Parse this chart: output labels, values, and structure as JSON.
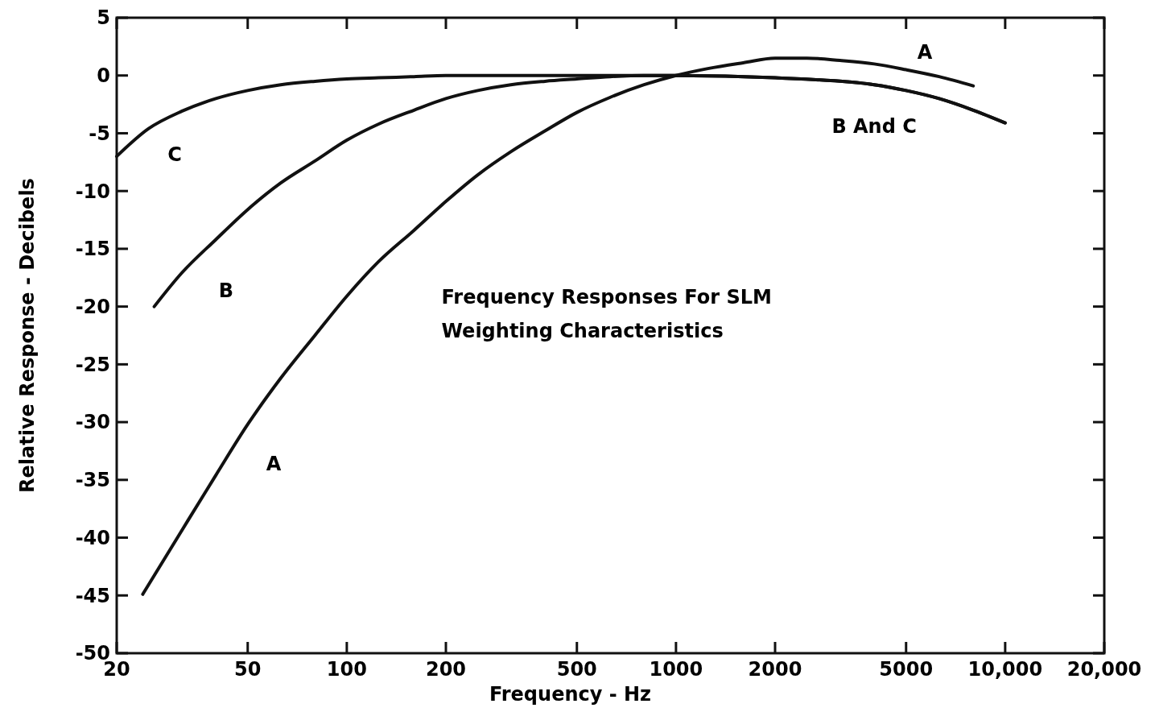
{
  "chart_data": {
    "type": "line",
    "title": "Frequency Responses For SLM",
    "subtitle": "Weighting Characteristics",
    "xlabel": "Frequency - Hz",
    "ylabel": "Relative  Response - Decibels",
    "log": "x",
    "xlim": [
      20,
      20000
    ],
    "ylim": [
      -50,
      5
    ],
    "xticks": [
      20,
      50,
      100,
      200,
      500,
      1000,
      2000,
      5000,
      {
        "value": 10000,
        "label": "10,000"
      },
      {
        "value": 20000,
        "label": "20,000"
      }
    ],
    "yticks": [
      5,
      0,
      -5,
      -10,
      -15,
      -20,
      -25,
      -30,
      -35,
      -40,
      -45,
      -50
    ],
    "grid": false,
    "line_style": "solid",
    "series": [
      {
        "color": "#111111",
        "x": [
          24,
          31.5,
          40,
          50,
          63,
          80,
          100,
          125,
          160,
          200,
          250,
          315,
          400,
          500,
          630,
          800,
          1000,
          1250,
          1600,
          2000,
          2500,
          3150,
          4000,
          5000,
          6300,
          8000
        ],
        "values": [
          -44.9,
          -39.4,
          -34.6,
          -30.2,
          -26.2,
          -22.5,
          -19.1,
          -16.1,
          -13.4,
          -10.9,
          -8.6,
          -6.6,
          -4.8,
          -3.2,
          -1.9,
          -0.8,
          0,
          0.6,
          1.1,
          1.5,
          1.5,
          1.3,
          1.0,
          0.5,
          -0.1,
          -0.9
        ]
      },
      {
        "color": "#111111",
        "x": [
          26,
          31.5,
          40,
          50,
          63,
          80,
          100,
          125,
          160,
          200,
          250,
          315,
          400,
          500,
          630,
          800,
          1000,
          2000,
          4000,
          5000,
          6300,
          8000,
          10000
        ],
        "values": [
          -20,
          -17.1,
          -14.2,
          -11.6,
          -9.3,
          -7.4,
          -5.6,
          -4.2,
          -3.0,
          -2.0,
          -1.3,
          -0.8,
          -0.5,
          -0.3,
          -0.1,
          0,
          0,
          -0.2,
          -0.8,
          -1.3,
          -2.0,
          -3.0,
          -4.1
        ]
      },
      {
        "color": "#111111",
        "x": [
          20,
          25,
          31.5,
          40,
          50,
          63,
          80,
          100,
          125,
          160,
          200,
          500,
          1000,
          2000,
          4000,
          5000,
          6300,
          8000,
          10000
        ],
        "values": [
          -7,
          -4.6,
          -3.1,
          -2.0,
          -1.3,
          -0.8,
          -0.5,
          -0.3,
          -0.2,
          -0.1,
          0,
          0,
          0,
          -0.2,
          -0.8,
          -1.3,
          -2.0,
          -3.0,
          -4.1
        ]
      }
    ],
    "annotations": [
      "C",
      "B",
      "A",
      "A",
      "B And C"
    ]
  }
}
